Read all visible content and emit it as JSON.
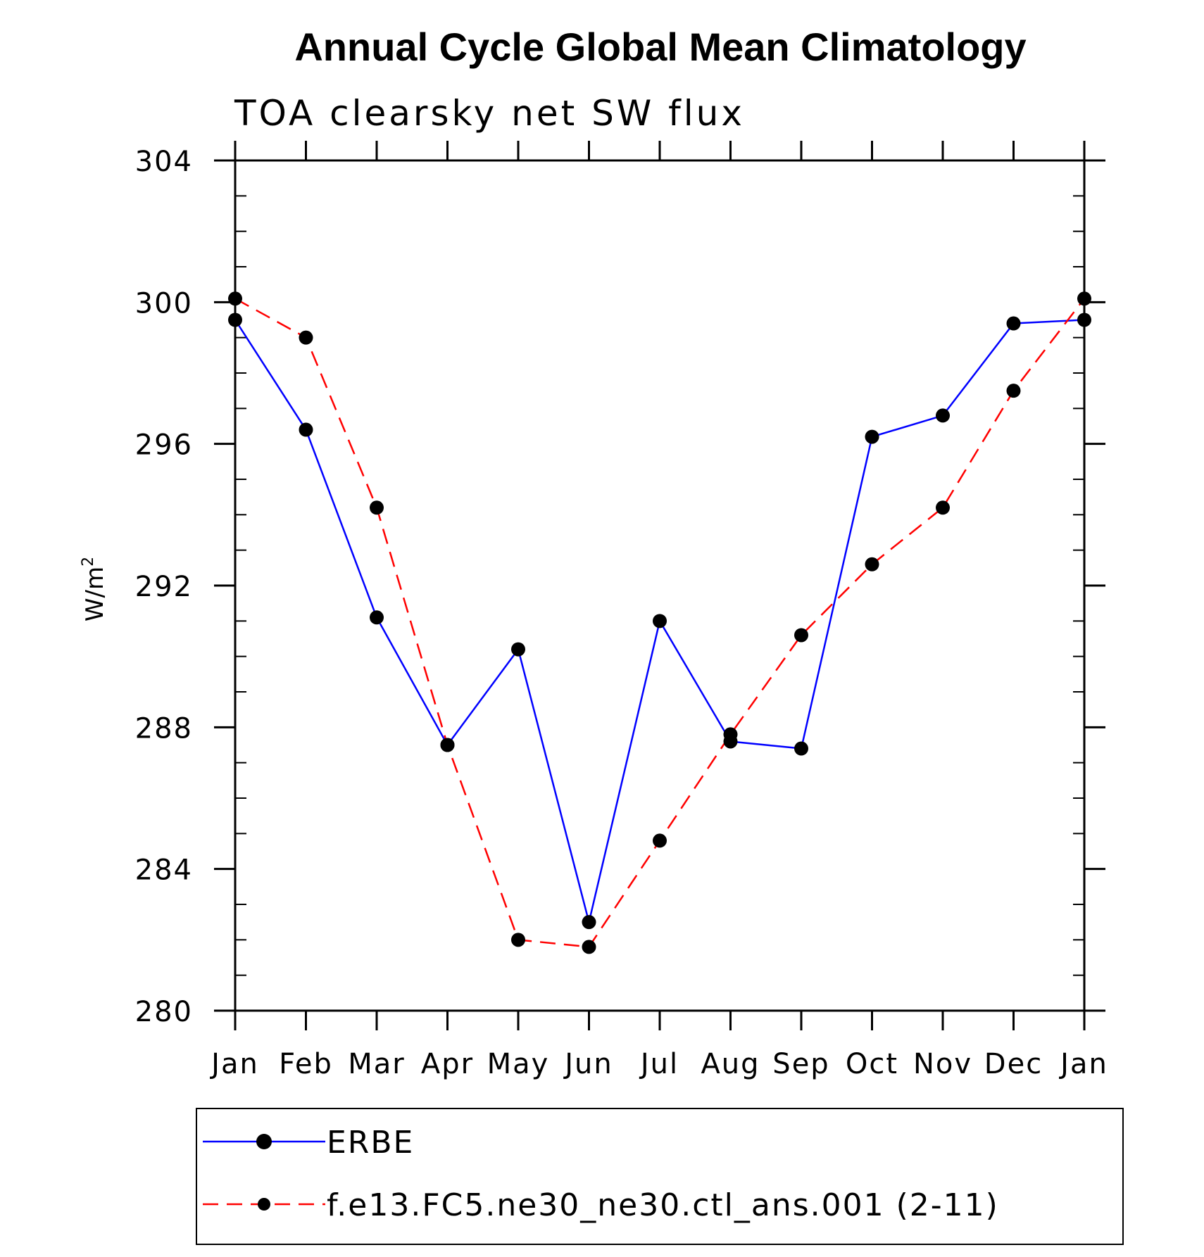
{
  "chart_data": {
    "type": "line",
    "title": "Annual Cycle Global Mean Climatology",
    "subtitle": "TOA clearsky net SW flux",
    "ylabel": "W/m",
    "ylabel_sup": "2",
    "xlabel": "",
    "categories": [
      "Jan",
      "Feb",
      "Mar",
      "Apr",
      "May",
      "Jun",
      "Jul",
      "Aug",
      "Sep",
      "Oct",
      "Nov",
      "Dec",
      "Jan"
    ],
    "ylim": [
      280,
      304
    ],
    "yticks": [
      280,
      284,
      288,
      292,
      296,
      300,
      304
    ],
    "grid": false,
    "legend_position": "bottom",
    "series": [
      {
        "name": "ERBE",
        "color": "#0000ff",
        "style": "solid",
        "marker": "filled-circle",
        "values": [
          299.5,
          296.4,
          291.1,
          287.5,
          290.2,
          282.5,
          291.0,
          287.6,
          287.4,
          296.2,
          296.8,
          299.4,
          299.5
        ]
      },
      {
        "name": "f.e13.FC5.ne30_ne30.ctl_ans.001 (2-11)",
        "color": "#ff0000",
        "style": "dashed",
        "marker": "filled-circle",
        "values": [
          300.1,
          299.0,
          294.2,
          287.5,
          282.0,
          281.8,
          284.8,
          287.8,
          290.6,
          292.6,
          294.2,
          297.5,
          300.1
        ]
      }
    ]
  }
}
